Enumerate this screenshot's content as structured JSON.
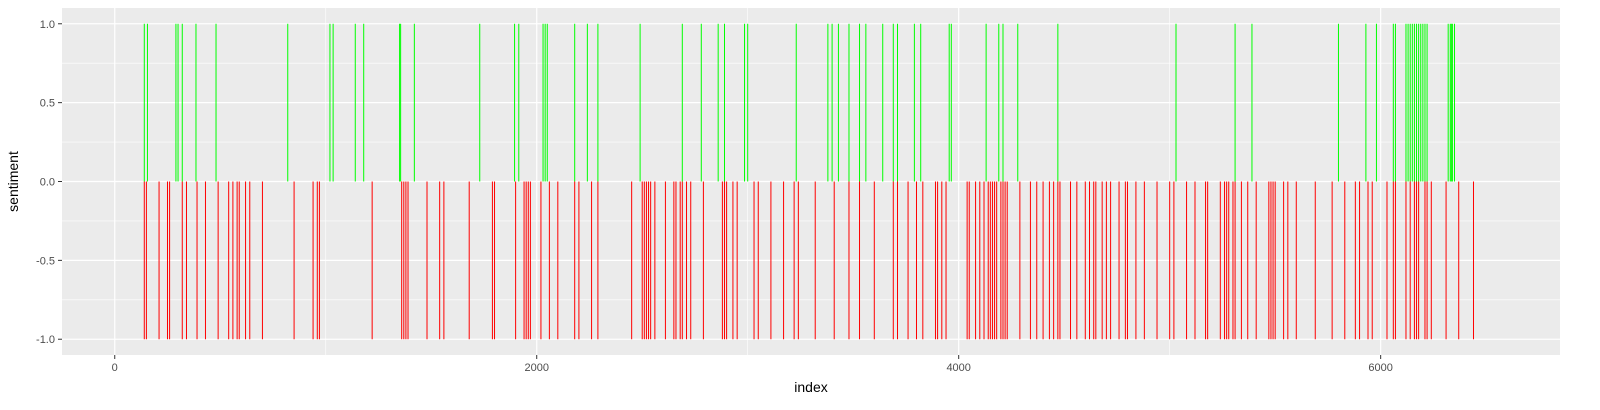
{
  "chart_data": {
    "type": "bar",
    "xlabel": "index",
    "ylabel": "sentiment",
    "xlim": [
      -250,
      6850
    ],
    "ylim": [
      -1.1,
      1.1
    ],
    "x_ticks": [
      0,
      2000,
      4000,
      6000
    ],
    "x_tick_labels": [
      "0",
      "2000",
      "4000",
      "6000"
    ],
    "y_ticks": [
      -1.0,
      -0.5,
      0.0,
      0.5,
      1.0
    ],
    "y_tick_labels": [
      "-1.0",
      "-0.5",
      "0.0",
      "0.5",
      "1.0"
    ],
    "grid": true,
    "legend": "none",
    "colors": {
      "positive": "#00ff00",
      "negative": "#ff0000",
      "panel": "#ebebeb",
      "grid": "#ffffff"
    },
    "series": [
      {
        "sign": "positive",
        "value": 1,
        "x": [
          140,
          155,
          290,
          300,
          320,
          385,
          480,
          820,
          1020,
          1035,
          1140,
          1180,
          1350,
          1355,
          1420,
          1730,
          1895,
          1915,
          2030,
          2040,
          2050,
          2180,
          2240,
          2290,
          2490,
          2690,
          2780,
          2860,
          2890,
          2985,
          3000,
          3230,
          3380,
          3400,
          3430,
          3480,
          3530,
          3560,
          3640,
          3690,
          3710,
          3790,
          3820,
          3955,
          3965,
          4130,
          4190,
          4210,
          4280,
          4470,
          5030,
          5310,
          5390,
          5800,
          5930,
          5980,
          6060,
          6070,
          6120,
          6130,
          6140,
          6150,
          6160,
          6170,
          6180,
          6190,
          6200,
          6210,
          6220,
          6320,
          6330,
          6335,
          6340,
          6350
        ]
      },
      {
        "sign": "negative",
        "value": -1,
        "x": [
          140,
          150,
          210,
          250,
          260,
          320,
          340,
          390,
          430,
          490,
          540,
          560,
          580,
          590,
          620,
          640,
          700,
          850,
          940,
          960,
          970,
          1220,
          1360,
          1370,
          1380,
          1390,
          1480,
          1540,
          1560,
          1680,
          1790,
          1800,
          1900,
          1940,
          1950,
          1960,
          1970,
          2020,
          2060,
          2100,
          2180,
          2200,
          2260,
          2290,
          2450,
          2500,
          2510,
          2520,
          2530,
          2540,
          2560,
          2610,
          2650,
          2660,
          2680,
          2690,
          2710,
          2730,
          2790,
          2880,
          2890,
          2900,
          2930,
          2950,
          3030,
          3050,
          3110,
          3170,
          3220,
          3240,
          3320,
          3410,
          3480,
          3530,
          3600,
          3690,
          3710,
          3760,
          3800,
          3830,
          3890,
          3900,
          3920,
          3940,
          4040,
          4050,
          4080,
          4100,
          4120,
          4140,
          4150,
          4160,
          4170,
          4180,
          4200,
          4210,
          4220,
          4230,
          4290,
          4340,
          4370,
          4400,
          4430,
          4450,
          4470,
          4480,
          4530,
          4560,
          4600,
          4620,
          4640,
          4650,
          4680,
          4700,
          4720,
          4760,
          4790,
          4800,
          4840,
          4880,
          4940,
          5000,
          5020,
          5080,
          5120,
          5170,
          5180,
          5240,
          5260,
          5270,
          5280,
          5300,
          5310,
          5340,
          5370,
          5410,
          5470,
          5480,
          5490,
          5500,
          5540,
          5560,
          5600,
          5690,
          5770,
          5830,
          5880,
          5900,
          5940,
          5960,
          6030,
          6060,
          6070,
          6120,
          6140,
          6160,
          6170,
          6180,
          6210,
          6220,
          6240,
          6310,
          6370,
          6440
        ]
      }
    ]
  }
}
